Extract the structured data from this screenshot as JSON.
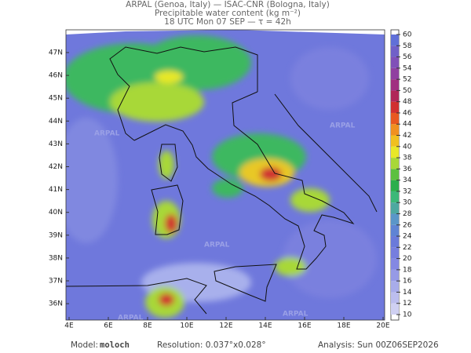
{
  "header": {
    "lines": [
      "ARPAL (Genoa, Italy)  —  ISAC-CNR (Bologna, Italy)",
      "Precipitable water content (kg m⁻²)",
      "18 UTC Mon 07 SEP  —  τ = 42h"
    ]
  },
  "map": {
    "lat_labels": [
      "47N",
      "46N",
      "45N",
      "44N",
      "43N",
      "42N",
      "41N",
      "40N",
      "39N",
      "38N",
      "37N",
      "36N"
    ],
    "lon_labels": [
      "4E",
      "6E",
      "8E",
      "10E",
      "12E",
      "14E",
      "16E",
      "18E",
      "20E"
    ],
    "watermark": "ARPAL"
  },
  "colorbar": {
    "ticks": [
      10,
      12,
      14,
      16,
      18,
      20,
      22,
      24,
      26,
      28,
      30,
      32,
      34,
      36,
      38,
      40,
      42,
      44,
      46,
      48,
      50,
      52,
      54,
      56,
      58,
      60
    ],
    "colors": [
      "#cfd0f2",
      "#bcbeee",
      "#a8acea",
      "#969ae6",
      "#8488e2",
      "#767ede",
      "#6a7ada",
      "#5f84d4",
      "#5a96c8",
      "#4ea8a0",
      "#3cb878",
      "#2cae4c",
      "#5cc040",
      "#a8d838",
      "#e8e828",
      "#f0c020",
      "#f09020",
      "#e85820",
      "#d03030",
      "#b02858",
      "#a03080",
      "#9040a0",
      "#8050b8",
      "#7060c8",
      "#6070d8"
    ]
  },
  "footer": {
    "model_label": "Model:",
    "model": "moloch",
    "resolution": "Resolution: 0.037°x0.028°",
    "analysis": "Analysis: Sun 00Z06SEP2026"
  }
}
